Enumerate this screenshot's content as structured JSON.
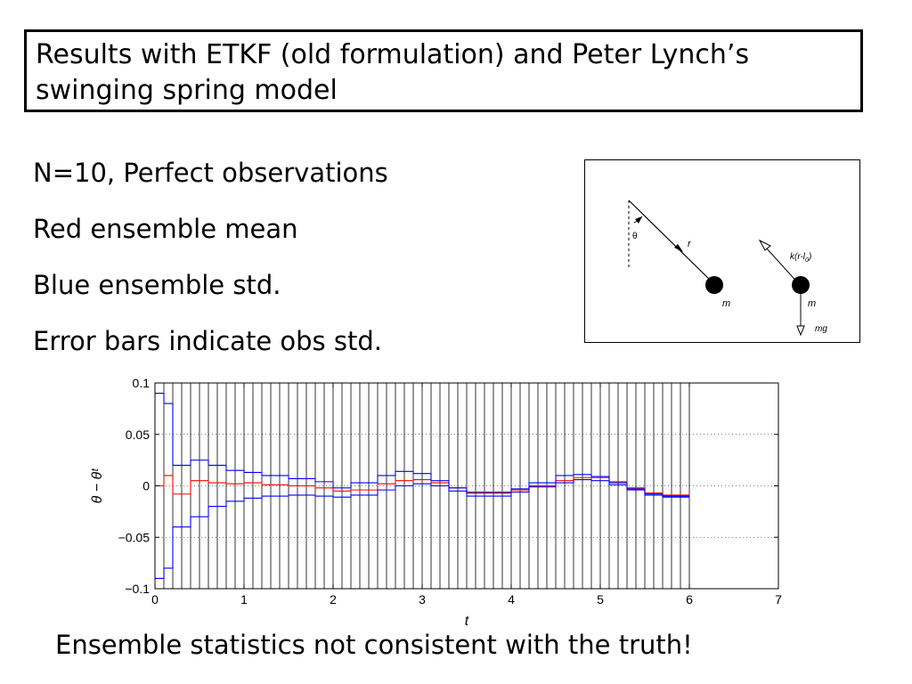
{
  "slide": {
    "title": "Results with ETKF (old formulation) and Peter Lynch’s swinging spring model",
    "bullets": [
      "N=10, Perfect observations",
      "Red ensemble mean",
      "Blue ensemble std.",
      "Error bars indicate obs std."
    ],
    "conclusion": "Ensemble statistics not consistent with the truth!"
  },
  "diagram": {
    "labels": {
      "theta": "θ",
      "r": "r",
      "m1": "m",
      "spring_force": "k(r-l",
      "spring_sub": "0",
      "spring_close": ")",
      "m2": "m",
      "mg": "mg"
    }
  },
  "chart_data": {
    "type": "line",
    "xlabel": "t",
    "ylabel": "θ − θᵗ",
    "xlim": [
      0,
      7
    ],
    "ylim": [
      -0.1,
      0.1
    ],
    "xticks": [
      0,
      1,
      2,
      3,
      4,
      5,
      6,
      7
    ],
    "yticks": [
      -0.1,
      -0.05,
      0,
      0.05,
      0.1
    ],
    "ytick_labels": [
      "−0.1",
      "−0.05",
      "0",
      "0.05",
      "0.1"
    ],
    "grid": "horizontal dotted",
    "obs_times": [
      0.1,
      0.2,
      0.3,
      0.4,
      0.5,
      0.6,
      0.7,
      0.8,
      0.9,
      1.0,
      1.1,
      1.2,
      1.3,
      1.4,
      1.5,
      1.6,
      1.7,
      1.8,
      1.9,
      2.0,
      2.1,
      2.2,
      2.3,
      2.4,
      2.5,
      2.6,
      2.7,
      2.8,
      2.9,
      3.0,
      3.1,
      3.2,
      3.3,
      3.4,
      3.5,
      3.6,
      3.7,
      3.8,
      3.9,
      4.0,
      4.1,
      4.2,
      4.3,
      4.4,
      4.5,
      4.6,
      4.7,
      4.8,
      4.9,
      5.0,
      5.1,
      5.2,
      5.3,
      5.4,
      5.5,
      5.6,
      5.7,
      5.8,
      5.9,
      6.0
    ],
    "obs_std_halfwidth": 0.1,
    "series": [
      {
        "color": "#ff0000",
        "x": [
          0,
          0.1,
          0.2,
          0.4,
          0.6,
          0.8,
          1.0,
          1.2,
          1.5,
          1.8,
          2.0,
          2.2,
          2.5,
          2.7,
          2.9,
          3.1,
          3.3,
          3.5,
          3.7,
          4.0,
          4.2,
          4.5,
          4.7,
          4.9,
          5.1,
          5.3,
          5.5,
          5.7,
          6.0
        ],
        "y": [
          0,
          0.01,
          -0.008,
          0.005,
          0.003,
          0.002,
          0.003,
          0.001,
          0,
          -0.002,
          -0.005,
          -0.004,
          0.002,
          0.005,
          0.006,
          0.003,
          -0.002,
          -0.006,
          -0.006,
          -0.004,
          0,
          0.005,
          0.008,
          0.008,
          0.004,
          -0.002,
          -0.007,
          -0.009,
          -0.009
        ]
      },
      {
        "color": "#0000ff",
        "x": [
          0,
          0.1,
          0.2,
          0.4,
          0.6,
          0.8,
          1.0,
          1.2,
          1.5,
          1.8,
          2.0,
          2.2,
          2.5,
          2.7,
          2.9,
          3.1,
          3.3,
          3.5,
          3.7,
          4.0,
          4.2,
          4.5,
          4.7,
          4.9,
          5.1,
          5.3,
          5.5,
          5.7,
          6.0
        ],
        "y": [
          0.09,
          0.08,
          0.02,
          0.025,
          0.02,
          0.015,
          0.013,
          0.01,
          0.007,
          0.004,
          -0.002,
          0.003,
          0.01,
          0.014,
          0.012,
          0.005,
          -0.002,
          -0.007,
          -0.007,
          -0.003,
          0.003,
          0.01,
          0.011,
          0.009,
          0.003,
          -0.003,
          -0.008,
          -0.01,
          -0.01
        ]
      },
      {
        "color": "#0000ff",
        "x": [
          0,
          0.1,
          0.2,
          0.4,
          0.6,
          0.8,
          1.0,
          1.2,
          1.5,
          1.8,
          2.0,
          2.2,
          2.5,
          2.7,
          2.9,
          3.1,
          3.3,
          3.5,
          3.7,
          4.0,
          4.2,
          4.5,
          4.7,
          4.9,
          5.1,
          5.3,
          5.5,
          5.7,
          6.0
        ],
        "y": [
          -0.09,
          -0.08,
          -0.04,
          -0.03,
          -0.02,
          -0.015,
          -0.012,
          -0.01,
          -0.009,
          -0.01,
          -0.011,
          -0.009,
          -0.004,
          0,
          0.002,
          0,
          -0.005,
          -0.01,
          -0.01,
          -0.006,
          -0.001,
          0.003,
          0.006,
          0.005,
          0.001,
          -0.004,
          -0.009,
          -0.011,
          -0.011
        ]
      }
    ]
  }
}
